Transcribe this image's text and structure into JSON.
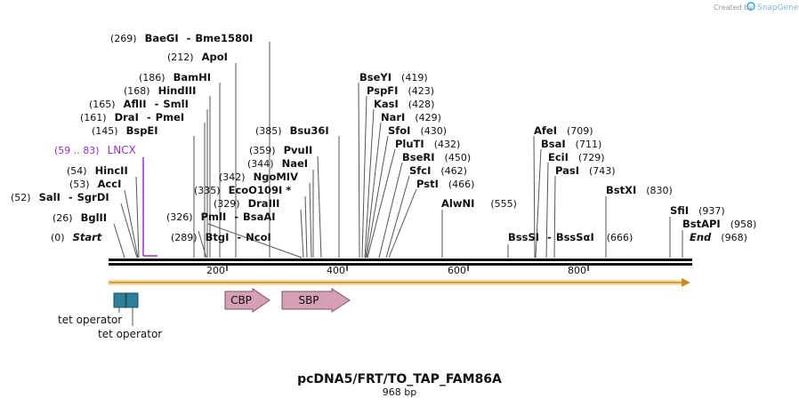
{
  "watermark": {
    "prefix": "Created by",
    "brand": "SnapGene"
  },
  "plasmid": {
    "name": "pcDNA5/FRT/TO_TAP_FAM86A",
    "length_label": "968 bp",
    "length": 968
  },
  "ruler": {
    "ticks": [
      "200",
      "400",
      "600",
      "800"
    ]
  },
  "sites": [
    {
      "pos": "(269)",
      "name": "BaeGI",
      "name2": "Bme1580I",
      "bp": 269
    },
    {
      "pos": "(212)",
      "name": "ApoI",
      "bp": 212
    },
    {
      "pos": "(186)",
      "name": "BamHI",
      "bp": 186
    },
    {
      "pos": "(168)",
      "name": "HindIII",
      "bp": 168
    },
    {
      "pos": "(165)",
      "name": "AflII",
      "name2": "SmlI",
      "bp": 165
    },
    {
      "pos": "(161)",
      "name": "DraI",
      "name2": "PmeI",
      "bp": 161
    },
    {
      "pos": "(145)",
      "name": "BspEI",
      "bp": 145
    },
    {
      "pos": "(59 .. 83)",
      "name": "LNCX",
      "bp": 59,
      "feature": true
    },
    {
      "pos": "(54)",
      "name": "HincII",
      "bp": 54
    },
    {
      "pos": "(53)",
      "name": "AccI",
      "bp": 53
    },
    {
      "pos": "(52)",
      "name": "SalI",
      "name2": "SgrDI",
      "bp": 52
    },
    {
      "pos": "(26)",
      "name": "BglII",
      "bp": 26
    },
    {
      "pos": "(0)",
      "name": "Start",
      "bp": 0,
      "italic": true
    },
    {
      "pos": "(385)",
      "name": "Bsu36I",
      "bp": 385
    },
    {
      "pos": "(359)",
      "name": "PvuII",
      "bp": 359
    },
    {
      "pos": "(344)",
      "name": "NaeI",
      "bp": 344
    },
    {
      "pos": "(342)",
      "name": "NgoMIV",
      "bp": 342
    },
    {
      "pos": "(335)",
      "name": "EcoO109I *",
      "bp": 335
    },
    {
      "pos": "(329)",
      "name": "DraIII",
      "bp": 329
    },
    {
      "pos": "(326)",
      "name": "PmlI",
      "name2": "BsaAI",
      "bp": 326
    },
    {
      "pos": "(289)",
      "name": "BtgI",
      "name2": "NcoI",
      "bp": 289
    },
    {
      "pos": "(419)",
      "name": "BseYI",
      "bp": 419
    },
    {
      "pos": "(423)",
      "name": "PspFI",
      "bp": 423
    },
    {
      "pos": "(428)",
      "name": "KasI",
      "bp": 428
    },
    {
      "pos": "(429)",
      "name": "NarI",
      "bp": 429
    },
    {
      "pos": "(430)",
      "name": "SfoI",
      "bp": 430
    },
    {
      "pos": "(432)",
      "name": "PluTI",
      "bp": 432
    },
    {
      "pos": "(450)",
      "name": "BseRI",
      "bp": 450
    },
    {
      "pos": "(462)",
      "name": "SfcI",
      "bp": 462
    },
    {
      "pos": "(466)",
      "name": "PstI",
      "bp": 466
    },
    {
      "pos": "(555)",
      "name": "AlwNI",
      "bp": 555
    },
    {
      "pos": "(709)",
      "name": "AfeI",
      "bp": 709
    },
    {
      "pos": "(711)",
      "name": "BsaI",
      "bp": 711
    },
    {
      "pos": "(729)",
      "name": "EciI",
      "bp": 729
    },
    {
      "pos": "(743)",
      "name": "PasI",
      "bp": 743
    },
    {
      "pos": "(666)",
      "name": "BssSI",
      "name2": "BssSαI",
      "bp": 666
    },
    {
      "pos": "(830)",
      "name": "BstXI",
      "bp": 830
    },
    {
      "pos": "(937)",
      "name": "SfiI",
      "bp": 937
    },
    {
      "pos": "(958)",
      "name": "BstAPI",
      "bp": 958
    },
    {
      "pos": "(968)",
      "name": "End",
      "bp": 968,
      "italic": true
    }
  ],
  "features": [
    {
      "name": "tet operator",
      "type": "operator"
    },
    {
      "name": "tet operator",
      "type": "operator"
    },
    {
      "name": "CBP",
      "type": "arrow"
    },
    {
      "name": "SBP",
      "type": "arrow"
    }
  ],
  "colors": {
    "backbone": "#111111",
    "orf": "#e8a33c",
    "operator": "#2d7f9a",
    "arrow": "#cc99b0",
    "feature_label": "#9a30c8"
  }
}
